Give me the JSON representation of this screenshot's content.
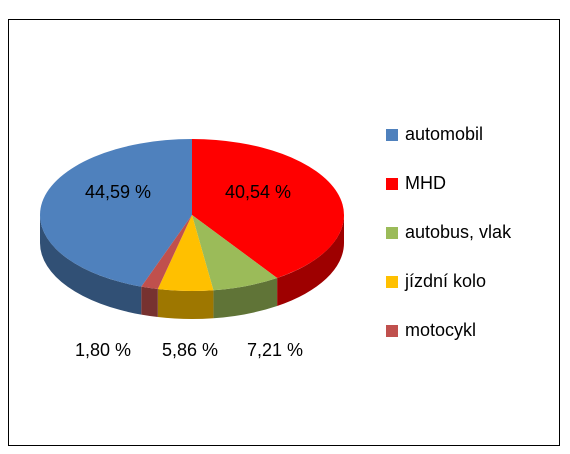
{
  "chart_data": {
    "type": "pie",
    "categories": [
      "automobil",
      "MHD",
      "autobus, vlak",
      "jízdní kolo",
      "motocykl"
    ],
    "values": [
      44.59,
      40.54,
      7.21,
      5.86,
      1.8
    ],
    "value_labels": [
      "44,59 %",
      "40,54 %",
      "7,21 %",
      "5,86 %",
      "1,80 %"
    ],
    "colors": [
      "#4f81bd",
      "#ff0000",
      "#9bbb59",
      "#ffc000",
      "#c0504d"
    ],
    "legend": "right"
  }
}
